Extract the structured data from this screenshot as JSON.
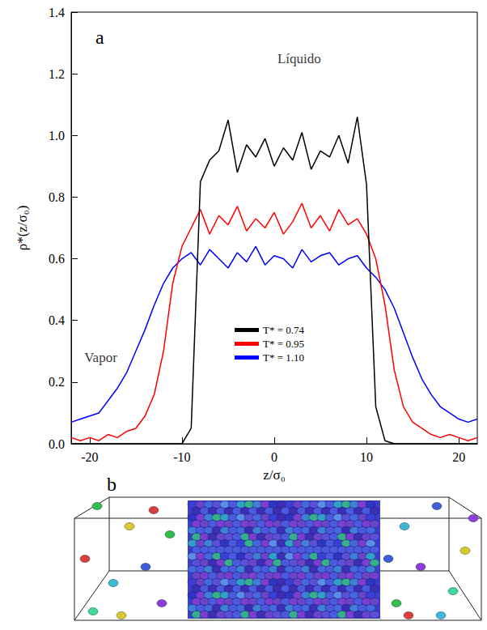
{
  "chart_data": {
    "type": "line",
    "panel_labels": [
      "a",
      "b"
    ],
    "x_label": "z/σ₀",
    "y_label": "ρ*(z/σ₀)",
    "annotations": [
      {
        "text": "Líquido",
        "x": 2.7,
        "y": 1.25
      },
      {
        "text": "Vapor",
        "x": -18.8,
        "y": 0.28
      }
    ],
    "xlim": [
      -22,
      22
    ],
    "xticks": [
      -20,
      -10,
      0,
      10,
      20
    ],
    "ylim": [
      0,
      1.4
    ],
    "yticks": [
      {
        "value": 0,
        "label": "0.0"
      },
      0.2,
      0.4,
      0.6,
      0.8,
      {
        "value": 1,
        "label": "1.0"
      },
      1.2,
      1.4
    ],
    "grid": false,
    "legend": "center",
    "x": [
      -22,
      -21,
      -20,
      -19,
      -18,
      -17,
      -16,
      -15,
      -14,
      -13,
      -12,
      -11,
      -10,
      -9,
      -8,
      -7,
      -6,
      -5,
      -4,
      -3,
      -2,
      -1,
      0,
      1,
      2,
      3,
      4,
      5,
      6,
      7,
      8,
      9,
      10,
      11,
      12,
      13,
      14,
      15,
      16,
      17,
      18,
      19,
      20,
      21,
      22
    ],
    "series": [
      {
        "name": "T* = 0.74",
        "color": "#000000",
        "values": [
          0,
          0,
          0,
          0,
          0,
          0,
          0,
          0,
          0,
          0,
          0,
          0,
          0,
          0.05,
          0.85,
          0.92,
          0.95,
          1.05,
          0.88,
          0.97,
          0.93,
          0.99,
          0.9,
          0.96,
          0.92,
          1.01,
          0.89,
          0.95,
          0.93,
          1.0,
          0.91,
          1.06,
          0.84,
          0.12,
          0.01,
          0,
          0,
          0,
          0,
          0,
          0,
          0,
          0,
          0,
          0
        ]
      },
      {
        "name": "T* = 0.95",
        "color": "#ff0000",
        "values": [
          0.02,
          0.01,
          0.02,
          0.01,
          0.03,
          0.02,
          0.04,
          0.05,
          0.09,
          0.16,
          0.3,
          0.52,
          0.64,
          0.7,
          0.76,
          0.68,
          0.74,
          0.71,
          0.77,
          0.69,
          0.73,
          0.7,
          0.75,
          0.68,
          0.72,
          0.78,
          0.7,
          0.74,
          0.69,
          0.76,
          0.71,
          0.73,
          0.68,
          0.6,
          0.45,
          0.24,
          0.12,
          0.07,
          0.05,
          0.03,
          0.02,
          0.03,
          0.02,
          0.01,
          0.02
        ]
      },
      {
        "name": "T* = 1.10",
        "color": "#0000ff",
        "values": [
          0.07,
          0.08,
          0.09,
          0.1,
          0.14,
          0.18,
          0.23,
          0.3,
          0.37,
          0.45,
          0.52,
          0.57,
          0.6,
          0.62,
          0.58,
          0.63,
          0.6,
          0.57,
          0.62,
          0.59,
          0.64,
          0.58,
          0.61,
          0.6,
          0.57,
          0.63,
          0.59,
          0.61,
          0.62,
          0.58,
          0.6,
          0.61,
          0.57,
          0.54,
          0.5,
          0.44,
          0.36,
          0.28,
          0.21,
          0.16,
          0.12,
          0.1,
          0.08,
          0.07,
          0.08
        ]
      }
    ]
  }
}
